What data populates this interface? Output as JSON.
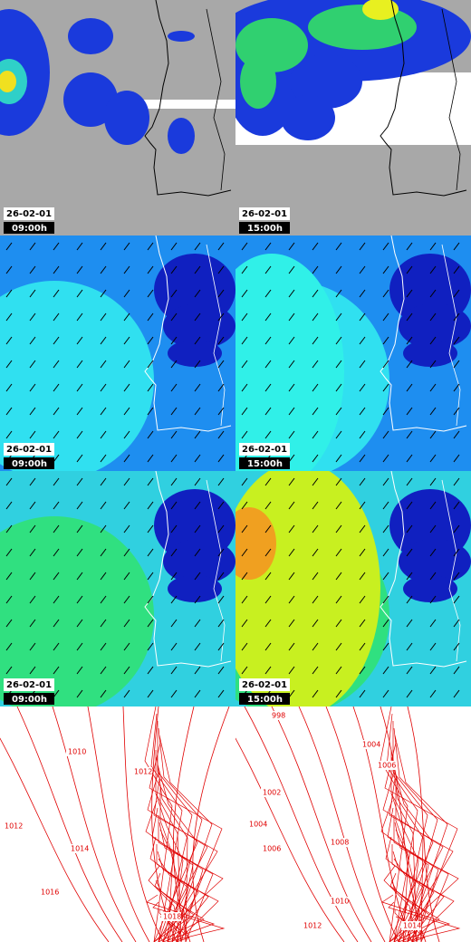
{
  "rows": [
    {
      "panels": [
        {
          "date": "26-02-01",
          "time": "09:00h"
        },
        {
          "date": "26-02-01",
          "time": "15:00h"
        }
      ]
    },
    {
      "panels": [
        {
          "date": "26-02-01",
          "time": "09:00h"
        },
        {
          "date": "26-02-01",
          "time": "15:00h"
        }
      ]
    },
    {
      "panels": [
        {
          "date": "26-02-01",
          "time": "09:00h"
        },
        {
          "date": "26-02-01",
          "time": "15:00h"
        }
      ]
    }
  ],
  "pressure": {
    "panels": [
      {
        "isobar_labels": [
          "1010",
          "1012",
          "1012",
          "1014",
          "1016",
          "1018"
        ]
      },
      {
        "isobar_labels": [
          "998",
          "1004",
          "1006",
          "1002",
          "1004",
          "1006",
          "1008",
          "1010",
          "1012",
          "1014"
        ]
      }
    ]
  }
}
